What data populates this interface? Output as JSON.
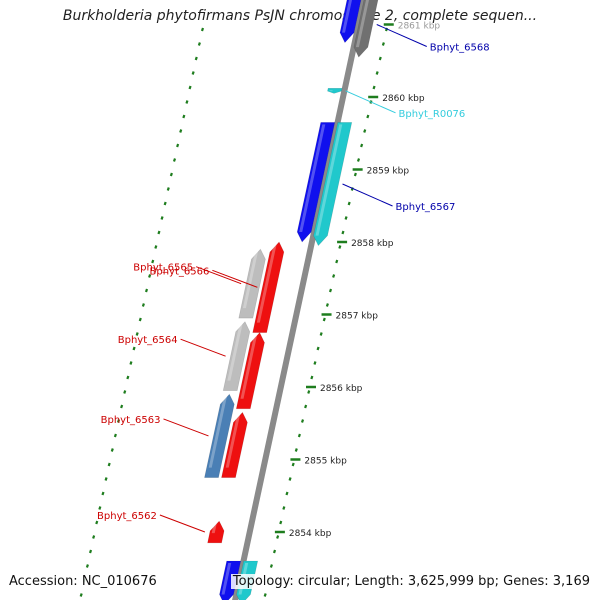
{
  "title": "Burkholderia phytofirmans PsJN chromosome 2, complete sequen...",
  "accession": "Accession: NC_010676",
  "topology": "Topology: circular; Length: 3,625,999 bp; Genes: 3,169",
  "colors": {
    "backbone": "#8a8a8a",
    "tick": "#1e7d1e",
    "fwd_blue": "#1010ee",
    "fwd_cyan": "#20c8cc",
    "fwd_gray": "#707070",
    "rev_red": "#ee1010",
    "rev_gray": "#bdbdbd",
    "rev_steel": "#4a7fb5",
    "label_blue": "#0000aa",
    "label_cyan": "#33ccdd",
    "label_red": "#cc0000"
  },
  "ticks": [
    {
      "kbp": 2861,
      "label": "2861 kbp"
    },
    {
      "kbp": 2860,
      "label": "2860 kbp"
    },
    {
      "kbp": 2859,
      "label": "2859 kbp"
    },
    {
      "kbp": 2858,
      "label": "2858 kbp"
    },
    {
      "kbp": 2857,
      "label": "2857 kbp"
    },
    {
      "kbp": 2856,
      "label": "2856 kbp"
    },
    {
      "kbp": 2855,
      "label": "2855 kbp"
    },
    {
      "kbp": 2854,
      "label": "2854 kbp"
    }
  ],
  "features": [
    {
      "name": "Bphyt_6568",
      "strand": "forward",
      "track": "outer",
      "start_kbp": 2860.55,
      "end_kbp": 2861.45,
      "color": "fwd_gray",
      "label_color": "label_blue"
    },
    {
      "name": "",
      "strand": "forward",
      "track": "inner",
      "start_kbp": 2860.75,
      "end_kbp": 2861.45,
      "color": "fwd_blue"
    },
    {
      "name": "Bphyt_R0076",
      "strand": "forward",
      "track": "inner",
      "start_kbp": 2860.05,
      "end_kbp": 2860.12,
      "color": "fwd_cyan",
      "label_color": "label_cyan"
    },
    {
      "name": "Bphyt_6567",
      "strand": "forward",
      "track": "outer",
      "start_kbp": 2857.95,
      "end_kbp": 2859.65,
      "color": "fwd_cyan",
      "label_color": "label_blue"
    },
    {
      "name": "",
      "strand": "forward",
      "track": "inner",
      "start_kbp": 2858.0,
      "end_kbp": 2859.65,
      "color": "fwd_blue"
    },
    {
      "name": "Bphyt_6566",
      "strand": "reverse",
      "track": "inner",
      "start_kbp": 2856.75,
      "end_kbp": 2858.0,
      "color": "rev_red",
      "label_color": "label_red"
    },
    {
      "name": "Bphyt_6565",
      "strand": "reverse",
      "track": "outer",
      "start_kbp": 2856.95,
      "end_kbp": 2857.9,
      "color": "rev_gray",
      "label_color": "label_red"
    },
    {
      "name": "Bphyt_6564",
      "strand": "reverse",
      "track": "outer",
      "start_kbp": 2855.95,
      "end_kbp": 2856.9,
      "color": "rev_gray",
      "label_color": "label_red"
    },
    {
      "name": "",
      "strand": "reverse",
      "track": "inner",
      "start_kbp": 2855.7,
      "end_kbp": 2856.75,
      "color": "rev_red"
    },
    {
      "name": "Bphyt_6563",
      "strand": "reverse",
      "track": "outer",
      "start_kbp": 2854.75,
      "end_kbp": 2855.9,
      "color": "rev_steel",
      "label_color": "label_red"
    },
    {
      "name": "",
      "strand": "reverse",
      "track": "inner",
      "start_kbp": 2854.75,
      "end_kbp": 2855.65,
      "color": "rev_red"
    },
    {
      "name": "Bphyt_6562",
      "strand": "reverse",
      "track": "inner",
      "start_kbp": 2853.85,
      "end_kbp": 2854.15,
      "color": "rev_red",
      "label_color": "label_red"
    },
    {
      "name": "",
      "strand": "forward",
      "track": "inner",
      "start_kbp": 2853.0,
      "end_kbp": 2853.6,
      "color": "fwd_blue"
    },
    {
      "name": "",
      "strand": "forward",
      "track": "outer",
      "start_kbp": 2853.0,
      "end_kbp": 2853.6,
      "color": "fwd_cyan"
    }
  ]
}
